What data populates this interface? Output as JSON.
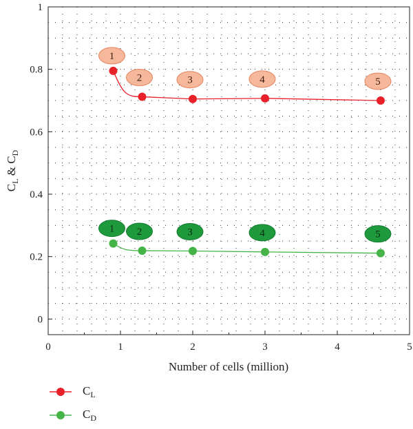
{
  "chart_data": {
    "type": "line",
    "xlabel": "Number of cells (million)",
    "ylabel": {
      "main1": "C",
      "sub1": "L",
      "mid": " & C",
      "sub2": "D"
    },
    "xlim": [
      0,
      5
    ],
    "ylim": [
      -0.05,
      1
    ],
    "xticks": [
      0,
      1,
      2,
      3,
      4,
      5
    ],
    "yticks": [
      0,
      0.2,
      0.4,
      0.6,
      0.8,
      1
    ],
    "xtick_labels": [
      "0",
      "1",
      "2",
      "3",
      "4",
      "5"
    ],
    "ytick_labels": [
      "0",
      "0.2",
      "0.4",
      "0.6",
      "0.8",
      "1"
    ],
    "grid": "dotted",
    "legend_position": "bottom-left",
    "series": [
      {
        "name": "CL",
        "label_main": "C",
        "label_sub": "L",
        "color": "#e8202a",
        "badge_fill": "#f5b89a",
        "badge_stroke": "#e8825e",
        "badge_text_color": "#3a1a10",
        "x": [
          0.9,
          1.3,
          2.0,
          3.0,
          4.6
        ],
        "y": [
          0.795,
          0.712,
          0.705,
          0.707,
          0.7
        ],
        "badges": [
          "1",
          "2",
          "3",
          "4",
          "5"
        ]
      },
      {
        "name": "CD",
        "label_main": "C",
        "label_sub": "D",
        "color": "#45b448",
        "badge_fill": "#1e9a3c",
        "badge_stroke": "#137a2c",
        "badge_text_color": "#0b2a12",
        "x": [
          0.9,
          1.3,
          2.0,
          3.0,
          4.6
        ],
        "y": [
          0.242,
          0.219,
          0.218,
          0.215,
          0.211
        ],
        "badges": [
          "1",
          "2",
          "3",
          "4",
          "5"
        ]
      }
    ]
  }
}
